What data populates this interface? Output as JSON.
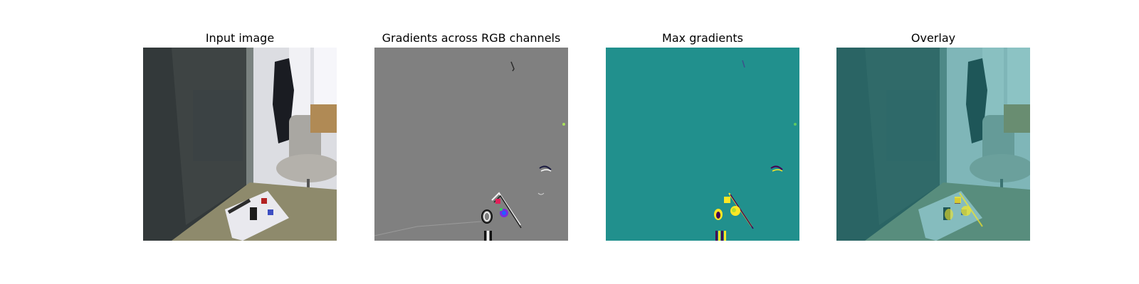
{
  "figure": {
    "panels": [
      {
        "title": "Input image"
      },
      {
        "title": "Gradients across RGB channels"
      },
      {
        "title": "Max gradients"
      },
      {
        "title": "Overlay"
      }
    ]
  },
  "colors": {
    "gradient_background": "#808080",
    "max_gradient_background": "#21908d",
    "overlay_tint": "#21908d",
    "highlight_yellow": "#f2e62a"
  }
}
